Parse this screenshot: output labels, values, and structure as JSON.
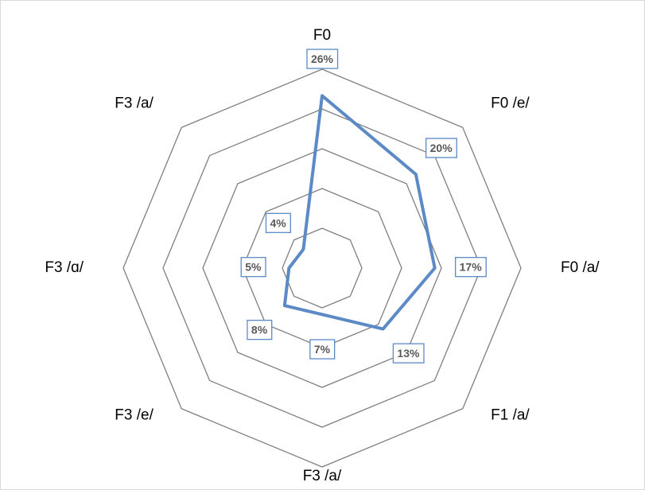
{
  "chart_data": {
    "type": "radar",
    "categories": [
      "F0",
      "F0 /e/",
      "F0 /a/",
      "F1 /a/",
      "F3 /a/",
      "F3 /e/",
      "F3 /ɑ/",
      "F3 /a/"
    ],
    "series": [
      {
        "color": "#5b8ac6",
        "values": [
          26,
          20,
          17,
          13,
          7,
          8,
          5,
          4
        ],
        "value_labels": [
          "26%",
          "20%",
          "17%",
          "13%",
          "7%",
          "8%",
          "5%",
          "4%"
        ]
      }
    ],
    "rlim": [
      0,
      30
    ],
    "rticks": [
      6,
      12,
      18,
      24,
      30
    ],
    "grid": true
  }
}
